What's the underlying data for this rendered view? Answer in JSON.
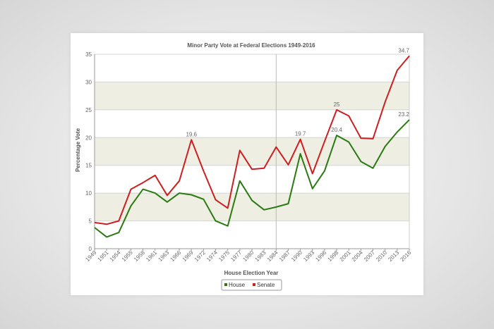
{
  "chart_data": {
    "type": "line",
    "title": "Minor Party Vote at Federal Elections 1949-2016",
    "xlabel": "House Election Year",
    "ylabel": "Percentage Vote",
    "ylim": [
      0,
      35
    ],
    "yticks": [
      0,
      5,
      10,
      15,
      20,
      25,
      30,
      35
    ],
    "grid": "horizontal",
    "legend": "bottom-center",
    "categories": [
      "1949",
      "1951",
      "1954",
      "1955",
      "1958",
      "1961",
      "1963",
      "1966",
      "1969",
      "1972",
      "1974",
      "1975",
      "1977",
      "1980",
      "1983",
      "1984",
      "1987",
      "1990",
      "1993",
      "1996",
      "1998",
      "2001",
      "2004",
      "2007",
      "2010",
      "2013",
      "2016"
    ],
    "series": [
      {
        "name": "House",
        "color": "#2a7a12",
        "values": [
          3.8,
          2.1,
          2.9,
          7.7,
          10.7,
          10.0,
          8.4,
          10.0,
          9.7,
          8.9,
          5.0,
          4.1,
          12.2,
          8.7,
          7.0,
          7.5,
          8.1,
          17.1,
          10.8,
          14.0,
          20.4,
          19.2,
          15.7,
          14.5,
          18.4,
          21.0,
          23.2
        ]
      },
      {
        "name": "Senate",
        "color": "#cc1f1f",
        "values": [
          4.7,
          4.4,
          5.0,
          10.7,
          11.9,
          13.2,
          9.6,
          12.2,
          19.6,
          14.0,
          8.8,
          7.3,
          17.7,
          14.3,
          14.5,
          18.3,
          15.1,
          19.7,
          13.5,
          19.3,
          25.0,
          23.9,
          19.9,
          19.8,
          26.4,
          32.1,
          34.7
        ]
      }
    ],
    "annotations": [
      {
        "series": "Senate",
        "x": "1969",
        "text": "19.6"
      },
      {
        "series": "Senate",
        "x": "1990",
        "text": "19.7"
      },
      {
        "series": "Senate",
        "x": "1998",
        "text": "25"
      },
      {
        "series": "House",
        "x": "1998",
        "text": "20.4"
      },
      {
        "series": "Senate",
        "x": "2016",
        "text": "34.7"
      },
      {
        "series": "House",
        "x": "2016",
        "text": "23.2"
      }
    ],
    "band_color": "#eeeee2",
    "crosshair_x": "1984"
  }
}
